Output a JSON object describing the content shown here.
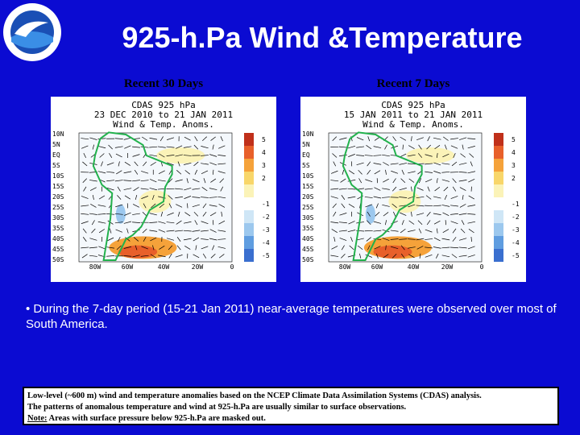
{
  "title": "925-h.Pa Wind &Temperature",
  "maps": [
    {
      "label": "Recent 30 Days",
      "header": [
        "CDAS 925 hPa",
        "23 DEC 2010 to 21 JAN 2011",
        "Wind & Temp. Anoms."
      ]
    },
    {
      "label": "Recent 7 Days",
      "header": [
        "CDAS 925 hPa",
        "15 JAN 2011 to 21 JAN 2011",
        "Wind & Temp. Anoms."
      ]
    }
  ],
  "lat_labels": [
    "10N",
    "5N",
    "EQ",
    "5S",
    "10S",
    "15S",
    "20S",
    "25S",
    "30S",
    "35S",
    "40S",
    "45S",
    "50S"
  ],
  "lon_labels": [
    "80W",
    "60W",
    "40W",
    "20W",
    "0"
  ],
  "colorbar_labels": [
    "5",
    "4",
    "3",
    "2",
    "-1",
    "-2",
    "-3",
    "-4",
    "-5"
  ],
  "bullet": "• During the 7-day period (15-21 Jan 2011) near-average temperatures were observed over most of South America.",
  "footnote": {
    "lines": [
      "Low-level (~600 m) wind and temperature anomalies based on the NCEP Climate Data Assimilation Systems (CDAS) analysis.",
      "The patterns of anomalous temperature and wind at 925-h.Pa are usually similar to surface observations."
    ],
    "note_label": "Note:",
    "note_text": " Areas with surface pressure below 925-h.Pa are masked out."
  }
}
